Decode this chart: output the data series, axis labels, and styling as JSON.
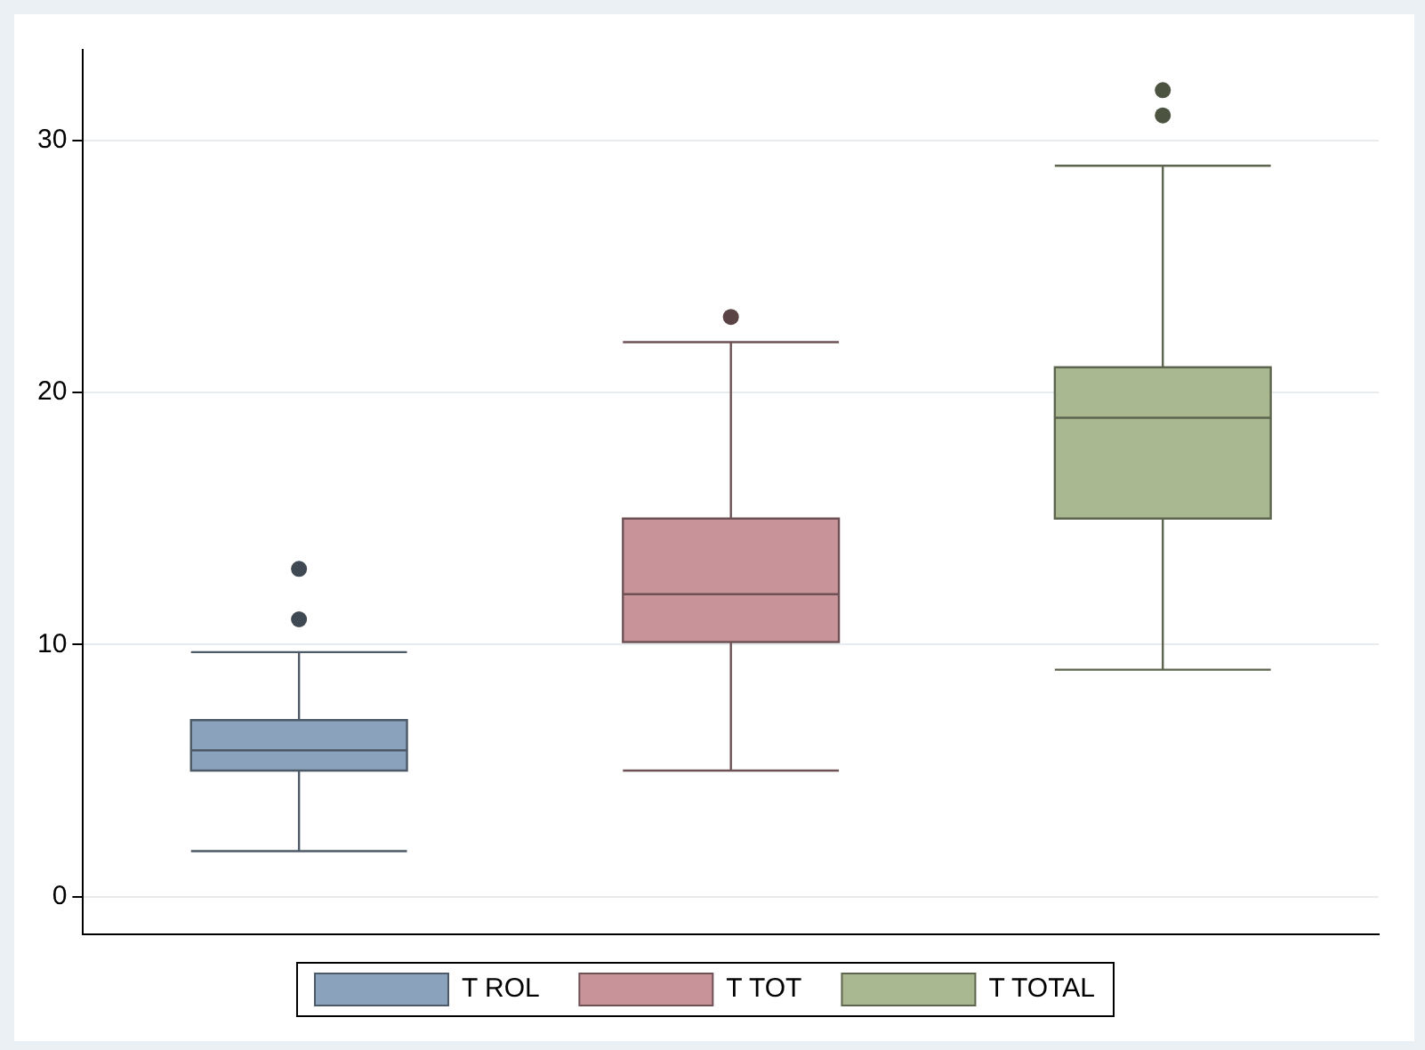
{
  "chart_data": {
    "type": "box",
    "categories": [
      null,
      null,
      null
    ],
    "series": [
      {
        "name": "T ROL",
        "color": "#8aa2bb",
        "boxes": [
          {
            "low": 1.8,
            "q1": 5,
            "median": 5.8,
            "q3": 7,
            "high": 9.7,
            "outliers": [
              11,
              13
            ]
          },
          null,
          null
        ]
      },
      {
        "name": "T TOT",
        "color": "#c8949a",
        "boxes": [
          null,
          {
            "low": 5,
            "q1": 10.1,
            "median": 12,
            "q3": 15,
            "high": 22,
            "outliers": [
              23
            ]
          },
          null
        ]
      },
      {
        "name": "T TOTAL",
        "color": "#a9b890",
        "boxes": [
          null,
          null,
          {
            "low": 9,
            "q1": 15,
            "median": 19,
            "q3": 21,
            "high": 29,
            "outliers": [
              31,
              32
            ]
          }
        ]
      }
    ],
    "ylim": [
      -1.5,
      33.6
    ],
    "yticks": [
      0,
      10,
      20,
      30
    ],
    "grid": "y",
    "legend": "bottom",
    "tick_labels": "y"
  }
}
